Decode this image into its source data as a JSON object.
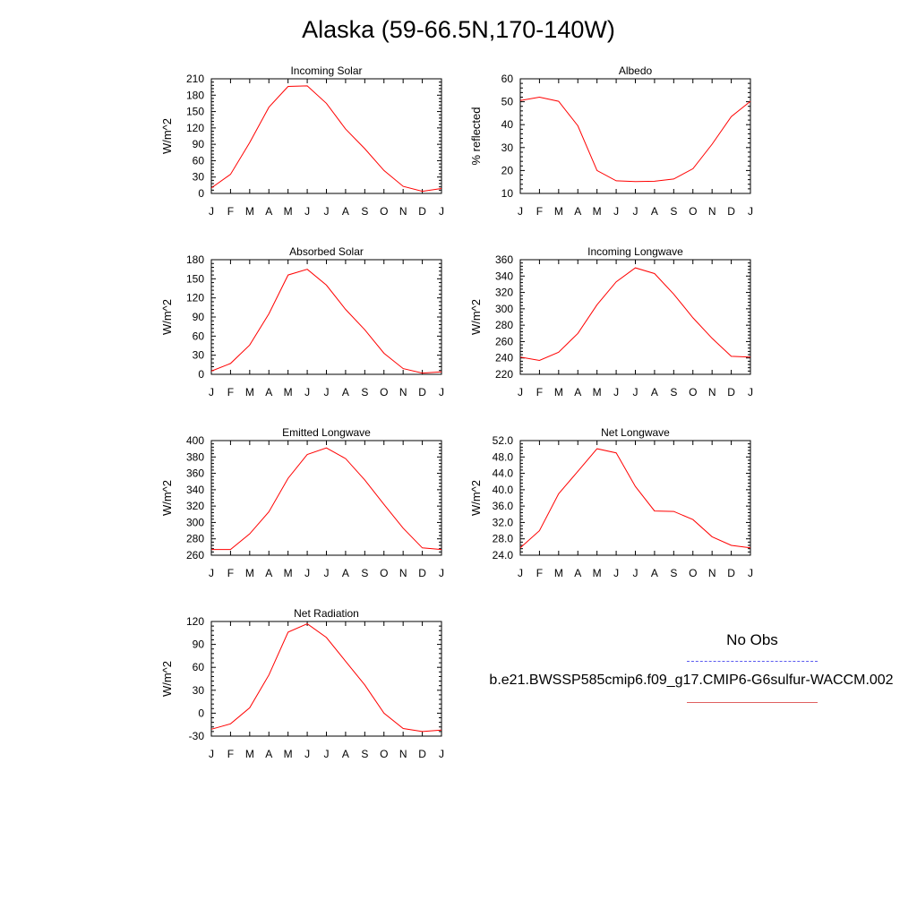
{
  "title": "Alaska (59-66.5N,170-140W)",
  "legend": {
    "obs_label": "No Obs",
    "obs_color": "#5b5bf0",
    "case_label": "b.e21.BWSSP585cmip6.f09_g17.CMIP6-G6sulfur-WACCM.002",
    "case_color": "#e06060"
  },
  "chart_data": [
    {
      "type": "line",
      "title": "Incoming Solar",
      "ylabel": "W/m^2",
      "x": [
        "J",
        "F",
        "M",
        "A",
        "M",
        "J",
        "J",
        "A",
        "S",
        "O",
        "N",
        "D",
        "J"
      ],
      "ylim": [
        0,
        210
      ],
      "yticks": [
        "0",
        "30",
        "60",
        "90",
        "120",
        "150",
        "180",
        "210"
      ],
      "series": [
        {
          "color": "#ff0000",
          "values": [
            10,
            35,
            93,
            158,
            196,
            197,
            165,
            118,
            82,
            42,
            13,
            4,
            9
          ]
        }
      ]
    },
    {
      "type": "line",
      "title": "Albedo",
      "ylabel": "% reflected",
      "x": [
        "J",
        "F",
        "M",
        "A",
        "M",
        "J",
        "J",
        "A",
        "S",
        "O",
        "N",
        "D",
        "J"
      ],
      "ylim": [
        10,
        60
      ],
      "yticks": [
        "10",
        "20",
        "30",
        "40",
        "50",
        "60"
      ],
      "series": [
        {
          "color": "#ff0000",
          "values": [
            50.5,
            52,
            50.2,
            39.5,
            20,
            15.5,
            15.2,
            15.3,
            16.3,
            20.8,
            31.5,
            43.5,
            50.2
          ]
        }
      ]
    },
    {
      "type": "line",
      "title": "Absorbed Solar",
      "ylabel": "W/m^2",
      "x": [
        "J",
        "F",
        "M",
        "A",
        "M",
        "J",
        "J",
        "A",
        "S",
        "O",
        "N",
        "D",
        "J"
      ],
      "ylim": [
        0,
        180
      ],
      "yticks": [
        "0",
        "30",
        "60",
        "90",
        "120",
        "150",
        "180"
      ],
      "series": [
        {
          "color": "#ff0000",
          "values": [
            5,
            17,
            46,
            95,
            156,
            165,
            140,
            102,
            70,
            33,
            9,
            2,
            4
          ]
        }
      ]
    },
    {
      "type": "line",
      "title": "Incoming Longwave",
      "ylabel": "W/m^2",
      "x": [
        "J",
        "F",
        "M",
        "A",
        "M",
        "J",
        "J",
        "A",
        "S",
        "O",
        "N",
        "D",
        "J"
      ],
      "ylim": [
        220,
        360
      ],
      "yticks": [
        "220",
        "240",
        "260",
        "280",
        "300",
        "320",
        "340",
        "360"
      ],
      "series": [
        {
          "color": "#ff0000",
          "values": [
            241,
            237,
            247,
            270,
            305,
            333,
            350,
            343,
            318,
            289,
            264,
            242,
            241
          ]
        }
      ]
    },
    {
      "type": "line",
      "title": "Emitted Longwave",
      "ylabel": "W/m^2",
      "x": [
        "J",
        "F",
        "M",
        "A",
        "M",
        "J",
        "J",
        "A",
        "S",
        "O",
        "N",
        "D",
        "J"
      ],
      "ylim": [
        260,
        400
      ],
      "yticks": [
        "260",
        "280",
        "300",
        "320",
        "340",
        "360",
        "380",
        "400"
      ],
      "series": [
        {
          "color": "#ff0000",
          "values": [
            267,
            267,
            286,
            313,
            354,
            383,
            391,
            378,
            352,
            322,
            293,
            269,
            267
          ]
        }
      ]
    },
    {
      "type": "line",
      "title": "Net Longwave",
      "ylabel": "W/m^2",
      "x": [
        "J",
        "F",
        "M",
        "A",
        "M",
        "J",
        "J",
        "A",
        "S",
        "O",
        "N",
        "D",
        "J"
      ],
      "ylim": [
        24,
        52
      ],
      "yticks": [
        "24.0",
        "28.0",
        "32.0",
        "36.0",
        "40.0",
        "44.0",
        "48.0",
        "52.0"
      ],
      "series": [
        {
          "color": "#ff0000",
          "values": [
            25.8,
            30,
            39,
            44.5,
            50,
            49,
            40.8,
            34.8,
            34.7,
            32.7,
            28.5,
            26.4,
            25.8
          ]
        }
      ]
    },
    {
      "type": "line",
      "title": "Net Radiation",
      "ylabel": "W/m^2",
      "x": [
        "J",
        "F",
        "M",
        "A",
        "M",
        "J",
        "J",
        "A",
        "S",
        "O",
        "N",
        "D",
        "J"
      ],
      "ylim": [
        -30,
        120
      ],
      "yticks": [
        "-30",
        "0",
        "30",
        "60",
        "90",
        "120"
      ],
      "series": [
        {
          "color": "#ff0000",
          "values": [
            -21,
            -14,
            7,
            50,
            106,
            117,
            99,
            68,
            37,
            0,
            -20,
            -24,
            -22
          ]
        }
      ]
    }
  ]
}
